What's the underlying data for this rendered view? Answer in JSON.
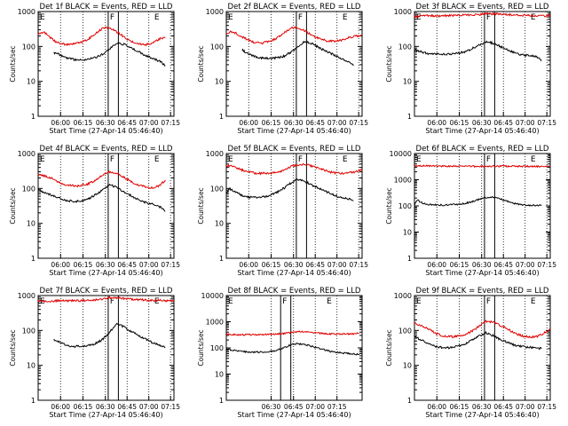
{
  "chart_data": [
    {
      "type": "line",
      "title": "Det 1f BLACK = Events, RED = LLD",
      "xlabel": "Start Time (27-Apr-14 05:46:40)",
      "ylabel": "Counts/sec",
      "ylog": true,
      "ylim": [
        1,
        1000
      ],
      "x_ticks": [
        "06:00",
        "06:15",
        "06:30",
        "06:45",
        "07:00",
        "07:15"
      ],
      "series": [
        {
          "color": "#000000",
          "x": [
            11,
            15,
            20,
            25,
            30,
            35,
            40,
            45,
            50,
            55,
            60,
            65,
            70,
            75,
            80,
            85,
            89
          ],
          "y": [
            66,
            58,
            47,
            42,
            41,
            43,
            48,
            60,
            85,
            125,
            115,
            90,
            72,
            56,
            45,
            38,
            28
          ]
        },
        {
          "color": "#e00000",
          "x": [
            0,
            4,
            8,
            12,
            16,
            20,
            25,
            30,
            35,
            40,
            45,
            50,
            55,
            60,
            65,
            70,
            75,
            80,
            85,
            89
          ],
          "y": [
            230,
            260,
            190,
            140,
            120,
            115,
            118,
            130,
            160,
            230,
            330,
            350,
            260,
            190,
            140,
            118,
            112,
            125,
            165,
            185
          ]
        }
      ],
      "markers": [
        {
          "x": 0,
          "label": "E"
        },
        {
          "x": 49,
          "label": "F"
        },
        {
          "x": 80,
          "label": "E"
        }
      ]
    },
    {
      "type": "line",
      "title": "Det 2f BLACK = Events, RED = LLD",
      "xlabel": "Start Time (27-Apr-14 05:46:40)",
      "ylabel": "Counts/sec",
      "ylog": true,
      "ylim": [
        1,
        1000
      ],
      "x_ticks": [
        "06:00",
        "06:15",
        "06:30",
        "06:45",
        "07:00",
        "07:15"
      ],
      "series": [
        {
          "color": "#000000",
          "x": [
            11,
            15,
            20,
            25,
            30,
            35,
            40,
            45,
            50,
            55,
            60,
            65,
            70,
            75,
            80,
            85,
            89
          ],
          "y": [
            80,
            62,
            52,
            46,
            45,
            47,
            52,
            68,
            95,
            140,
            120,
            92,
            72,
            58,
            46,
            38,
            28
          ]
        },
        {
          "color": "#e00000",
          "x": [
            0,
            4,
            8,
            12,
            16,
            20,
            25,
            30,
            35,
            40,
            45,
            50,
            55,
            60,
            65,
            70,
            75,
            80,
            85,
            89,
            95
          ],
          "y": [
            240,
            270,
            220,
            180,
            150,
            130,
            125,
            140,
            170,
            240,
            330,
            350,
            280,
            210,
            170,
            145,
            140,
            150,
            175,
            190,
            210
          ]
        }
      ],
      "markers": [
        {
          "x": 0,
          "label": "E"
        },
        {
          "x": 49,
          "label": "F"
        },
        {
          "x": 80,
          "label": "E"
        }
      ]
    },
    {
      "type": "line",
      "title": "Det 3f BLACK = Events, RED = LLD",
      "xlabel": "Start Time (27-Apr-14 05:46:40)",
      "ylabel": "Counts/sec",
      "ylog": true,
      "ylim": [
        1,
        1000
      ],
      "x_ticks": [
        "06:00",
        "06:15",
        "06:30",
        "06:45",
        "07:00",
        "07:15"
      ],
      "series": [
        {
          "color": "#000000",
          "x": [
            0,
            5,
            10,
            15,
            20,
            25,
            30,
            35,
            40,
            45,
            50,
            55,
            60,
            65,
            70,
            75,
            80,
            85,
            89
          ],
          "y": [
            80,
            70,
            62,
            60,
            60,
            61,
            63,
            70,
            85,
            110,
            135,
            125,
            100,
            80,
            65,
            58,
            55,
            52,
            40
          ]
        },
        {
          "color": "#e00000",
          "x": [
            0,
            5,
            10,
            15,
            20,
            25,
            30,
            35,
            40,
            45,
            50,
            55,
            60,
            65,
            70,
            75,
            80,
            85,
            90,
            95
          ],
          "y": [
            720,
            740,
            760,
            750,
            760,
            770,
            780,
            790,
            800,
            820,
            860,
            870,
            840,
            820,
            800,
            790,
            780,
            770,
            760,
            770
          ]
        }
      ],
      "markers": [
        {
          "x": 0,
          "label": "E"
        },
        {
          "x": 49,
          "label": "F"
        },
        {
          "x": 80,
          "label": "E"
        }
      ]
    },
    {
      "type": "line",
      "title": "Det 4f BLACK = Events, RED = LLD",
      "xlabel": "Start Time (27-Apr-14 05:46:40)",
      "ylabel": "Counts/sec",
      "ylog": true,
      "ylim": [
        1,
        1000
      ],
      "x_ticks": [
        "06:00",
        "06:15",
        "06:30",
        "06:45",
        "07:00",
        "07:15"
      ],
      "series": [
        {
          "color": "#000000",
          "x": [
            0,
            5,
            10,
            15,
            20,
            25,
            30,
            35,
            40,
            45,
            50,
            55,
            60,
            65,
            70,
            75,
            80,
            85,
            89
          ],
          "y": [
            92,
            75,
            62,
            52,
            45,
            43,
            44,
            50,
            65,
            90,
            130,
            105,
            80,
            62,
            48,
            40,
            35,
            30,
            22
          ]
        },
        {
          "color": "#e00000",
          "x": [
            0,
            5,
            10,
            15,
            20,
            25,
            30,
            35,
            40,
            45,
            50,
            55,
            60,
            65,
            70,
            75,
            80,
            85,
            89
          ],
          "y": [
            250,
            230,
            190,
            150,
            125,
            118,
            120,
            135,
            170,
            240,
            300,
            270,
            210,
            160,
            125,
            110,
            105,
            120,
            175
          ]
        }
      ],
      "markers": [
        {
          "x": 0,
          "label": "E"
        },
        {
          "x": 49,
          "label": "F"
        },
        {
          "x": 80,
          "label": "E"
        }
      ]
    },
    {
      "type": "line",
      "title": "Det 5f BLACK = Events, RED = LLD",
      "xlabel": "Start Time (27-Apr-14 05:46:40)",
      "ylabel": "Counts/sec",
      "ylog": true,
      "ylim": [
        1,
        1000
      ],
      "x_ticks": [
        "06:00",
        "06:15",
        "06:30",
        "06:45",
        "07:00",
        "07:15"
      ],
      "series": [
        {
          "color": "#000000",
          "x": [
            0,
            2,
            6,
            10,
            15,
            20,
            25,
            30,
            35,
            40,
            45,
            50,
            55,
            60,
            65,
            70,
            75,
            80,
            85,
            89
          ],
          "y": [
            70,
            100,
            80,
            65,
            57,
            55,
            57,
            62,
            75,
            100,
            140,
            185,
            160,
            125,
            100,
            80,
            65,
            55,
            50,
            45
          ]
        },
        {
          "color": "#e00000",
          "x": [
            0,
            5,
            10,
            15,
            20,
            25,
            30,
            35,
            40,
            45,
            50,
            55,
            60,
            65,
            70,
            75,
            80,
            85,
            90,
            95
          ],
          "y": [
            450,
            420,
            350,
            300,
            275,
            270,
            275,
            290,
            330,
            420,
            470,
            480,
            440,
            380,
            320,
            280,
            270,
            275,
            300,
            350
          ]
        }
      ],
      "markers": [
        {
          "x": 0,
          "label": "E"
        },
        {
          "x": 49,
          "label": "F"
        },
        {
          "x": 80,
          "label": "E"
        }
      ]
    },
    {
      "type": "line",
      "title": "Det 6f BLACK = Events, RED = LLD",
      "xlabel": "Start Time (27-Apr-14 05:46:40)",
      "ylabel": "Counts/sec",
      "ylog": true,
      "ylim": [
        1,
        10000
      ],
      "x_ticks": [
        "06:00",
        "06:15",
        "06:30",
        "06:45",
        "07:00",
        "07:15"
      ],
      "series": [
        {
          "color": "#000000",
          "x": [
            0,
            2,
            6,
            10,
            15,
            20,
            25,
            30,
            35,
            40,
            45,
            50,
            55,
            60,
            65,
            70,
            75,
            80,
            85,
            89
          ],
          "y": [
            110,
            170,
            125,
            112,
            108,
            108,
            110,
            115,
            125,
            145,
            175,
            210,
            215,
            185,
            150,
            125,
            110,
            105,
            105,
            108
          ]
        },
        {
          "color": "#e00000",
          "x": [
            0,
            10,
            20,
            30,
            40,
            50,
            60,
            70,
            80,
            90,
            95
          ],
          "y": [
            3400,
            3350,
            3300,
            3300,
            3250,
            3250,
            3300,
            3250,
            3250,
            3200,
            3200
          ]
        }
      ],
      "markers": [
        {
          "x": 0,
          "label": "E"
        },
        {
          "x": 49,
          "label": "F"
        },
        {
          "x": 80,
          "label": "E"
        }
      ]
    },
    {
      "type": "line",
      "title": "Det 7f BLACK = Events, RED = LLD",
      "xlabel": "Start Time (27-Apr-14 05:46:40)",
      "ylabel": "Counts/sec",
      "ylog": true,
      "ylim": [
        1,
        1000
      ],
      "x_ticks": [
        "06:00",
        "06:15",
        "06:30",
        "06:45",
        "07:00",
        "07:15"
      ],
      "series": [
        {
          "color": "#000000",
          "x": [
            11,
            15,
            20,
            25,
            30,
            35,
            40,
            45,
            50,
            55,
            60,
            65,
            70,
            75,
            80,
            85,
            89
          ],
          "y": [
            55,
            45,
            38,
            35,
            35,
            37,
            42,
            55,
            90,
            160,
            125,
            95,
            72,
            58,
            45,
            38,
            32
          ]
        },
        {
          "color": "#e00000",
          "x": [
            0,
            5,
            10,
            15,
            20,
            25,
            30,
            35,
            40,
            45,
            50,
            55,
            60,
            65,
            70,
            75,
            80,
            85,
            90,
            95
          ],
          "y": [
            680,
            700,
            690,
            710,
            700,
            720,
            710,
            730,
            750,
            800,
            880,
            860,
            820,
            780,
            760,
            740,
            730,
            720,
            710,
            720
          ]
        }
      ],
      "markers": [
        {
          "x": 0,
          "label": "E"
        },
        {
          "x": 49,
          "label": "F"
        },
        {
          "x": 80,
          "label": "E"
        }
      ]
    },
    {
      "type": "line",
      "title": "Det 8f BLACK = Events, RED = LLD",
      "xlabel": "Start Time (27-Apr-14 05:46:40)",
      "ylabel": "Counts/sec",
      "ylog": true,
      "ylim": [
        1,
        10000
      ],
      "x_ticks": [
        "06:30",
        "06:45",
        "07:00",
        "07:15"
      ],
      "series": [
        {
          "color": "#000000",
          "x": [
            0,
            5,
            10,
            15,
            20,
            25,
            30,
            35,
            40,
            45,
            50,
            55,
            60,
            65,
            70,
            75,
            80,
            85,
            90,
            93
          ],
          "y": [
            90,
            82,
            75,
            70,
            68,
            70,
            72,
            80,
            100,
            130,
            145,
            135,
            115,
            95,
            80,
            70,
            65,
            62,
            58,
            55
          ]
        },
        {
          "color": "#e00000",
          "x": [
            0,
            5,
            10,
            15,
            20,
            25,
            30,
            35,
            40,
            45,
            50,
            55,
            60,
            65,
            70,
            75,
            80,
            85,
            90,
            93
          ],
          "y": [
            330,
            320,
            315,
            320,
            320,
            325,
            330,
            340,
            350,
            380,
            420,
            410,
            380,
            360,
            350,
            340,
            340,
            345,
            350,
            360
          ]
        }
      ],
      "markers": [
        {
          "x": 0,
          "label": "E"
        },
        {
          "x": 38,
          "label": "F"
        },
        {
          "x": 69,
          "label": "E"
        }
      ]
    },
    {
      "type": "line",
      "title": "Det 9f BLACK = Events, RED = LLD",
      "xlabel": "Start Time (27-Apr-14 05:46:40)",
      "ylabel": "Counts/sec",
      "ylog": true,
      "ylim": [
        1,
        1000
      ],
      "x_ticks": [
        "06:00",
        "06:15",
        "06:30",
        "06:45",
        "07:00",
        "07:15"
      ],
      "series": [
        {
          "color": "#000000",
          "x": [
            0,
            5,
            10,
            15,
            20,
            25,
            30,
            35,
            40,
            45,
            50,
            55,
            60,
            65,
            70,
            75,
            80,
            85,
            89
          ],
          "y": [
            68,
            52,
            42,
            35,
            32,
            32,
            35,
            40,
            52,
            68,
            85,
            72,
            55,
            45,
            38,
            35,
            33,
            32,
            30
          ]
        },
        {
          "color": "#e00000",
          "x": [
            0,
            5,
            10,
            15,
            20,
            25,
            30,
            35,
            40,
            45,
            50,
            55,
            60,
            65,
            70,
            75,
            80,
            85,
            90,
            95
          ],
          "y": [
            160,
            140,
            110,
            82,
            70,
            66,
            68,
            75,
            95,
            130,
            180,
            175,
            140,
            110,
            85,
            70,
            65,
            65,
            80,
            110
          ]
        }
      ],
      "markers": [
        {
          "x": 0,
          "label": "E"
        },
        {
          "x": 49,
          "label": "F"
        },
        {
          "x": 80,
          "label": "E"
        }
      ]
    }
  ]
}
